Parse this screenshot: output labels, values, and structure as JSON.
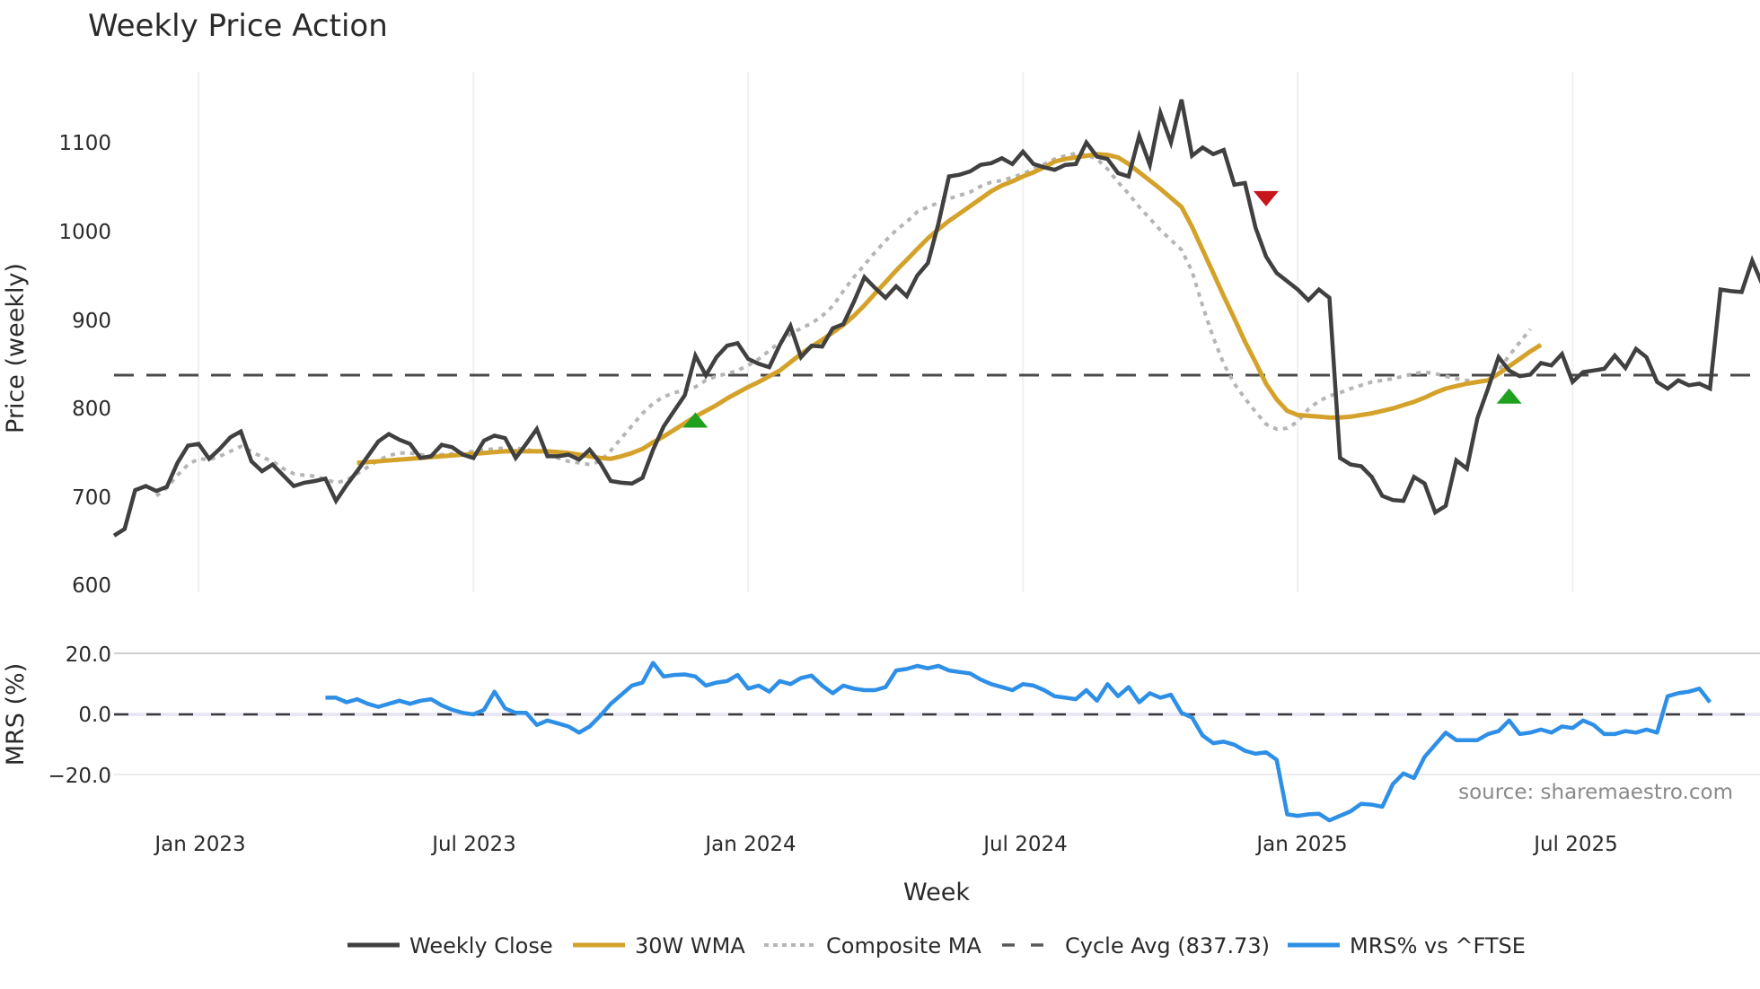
{
  "chart_data": [
    {
      "type": "line",
      "title": "Weekly Price Action",
      "xlabel": "Week",
      "ylabel": "Price (weekly)",
      "ylim": [
        600,
        1175
      ],
      "yticks": [
        600,
        700,
        800,
        900,
        1000,
        1100
      ],
      "x_tick_labels": [
        "Jan 2023",
        "Jul 2023",
        "Jan 2024",
        "Jul 2024",
        "Jan 2025",
        "Jul 2025"
      ],
      "x_tick_week_index": [
        8,
        34,
        60,
        86,
        112,
        138
      ],
      "grid": true,
      "legend_position": "bottom",
      "x_start": "Nov 2022 (weekly)",
      "series": [
        {
          "name": "Weekly Close",
          "color": "#404040",
          "start_index": 0,
          "values": [
            622,
            630,
            677,
            682,
            676,
            681,
            710,
            731,
            733,
            715,
            727,
            741,
            748,
            712,
            700,
            708,
            695,
            682,
            686,
            688,
            691,
            664,
            683,
            700,
            718,
            736,
            745,
            738,
            733,
            716,
            718,
            732,
            729,
            720,
            716,
            737,
            743,
            740,
            716,
            733,
            751,
            718,
            718,
            720,
            714,
            726,
            710,
            688,
            686,
            685,
            692,
            726,
            754,
            773,
            792,
            840,
            816,
            838,
            852,
            855,
            836,
            830,
            826,
            853,
            876,
            838,
            852,
            851,
            873,
            878,
            905,
            935,
            922,
            910,
            924,
            912,
            937,
            952,
            1000,
            1057,
            1059,
            1063,
            1071,
            1073,
            1079,
            1072,
            1087,
            1072,
            1068,
            1065,
            1071,
            1072,
            1098,
            1081,
            1078,
            1061,
            1057,
            1106,
            1071,
            1134,
            1098,
            1150,
            1082,
            1092,
            1084,
            1089,
            1047,
            1049,
            995,
            960,
            940,
            930,
            920,
            907,
            920,
            910,
            716,
            708,
            706,
            693,
            670,
            665,
            664,
            693,
            685,
            650,
            658,
            713,
            703,
            764,
            800,
            838,
            822,
            815,
            817,
            831,
            828,
            842,
            808,
            820,
            822,
            824,
            840,
            825,
            848,
            838,
            808,
            800,
            810,
            804,
            806,
            800,
            920,
            918,
            917,
            955,
            925
          ]
        },
        {
          "name": "30W WMA",
          "color": "#D4A22A",
          "start_index": 23,
          "values": [
            710,
            711,
            712,
            713,
            714,
            715,
            716,
            717,
            718,
            719,
            720,
            721,
            722,
            723,
            724,
            724,
            724,
            724,
            724,
            723,
            722,
            720,
            718,
            716,
            715,
            718,
            722,
            727,
            735,
            742,
            750,
            758,
            766,
            773,
            780,
            788,
            795,
            802,
            808,
            815,
            822,
            832,
            842,
            851,
            859,
            868,
            877,
            888,
            901,
            915,
            929,
            943,
            956,
            969,
            982,
            993,
            1003,
            1012,
            1021,
            1030,
            1039,
            1046,
            1051,
            1057,
            1062,
            1068,
            1075,
            1078,
            1080,
            1082,
            1084,
            1083,
            1080,
            1072,
            1062,
            1052,
            1042,
            1031,
            1020,
            996,
            968,
            940,
            912,
            885,
            857,
            832,
            806,
            787,
            773,
            768,
            767,
            766,
            765,
            765,
            766,
            768,
            770,
            773,
            776,
            780,
            784,
            789,
            795,
            800,
            803,
            806,
            808,
            810,
            818,
            827,
            836,
            845,
            853
          ]
        },
        {
          "name": "Composite MA",
          "color": "#B5B5B5",
          "start_index": 4,
          "values": [
            670,
            680,
            695,
            708,
            715,
            714,
            718,
            724,
            730,
            724,
            717,
            712,
            703,
            697,
            695,
            694,
            690,
            686,
            689,
            697,
            705,
            713,
            719,
            722,
            722,
            720,
            718,
            720,
            721,
            722,
            724,
            726,
            727,
            728,
            728,
            726,
            724,
            722,
            716,
            712,
            710,
            708,
            712,
            725,
            740,
            755,
            770,
            782,
            790,
            795,
            798,
            802,
            810,
            815,
            818,
            822,
            828,
            836,
            846,
            856,
            866,
            873,
            879,
            888,
            900,
            918,
            935,
            950,
            965,
            979,
            992,
            1002,
            1014,
            1020,
            1025,
            1030,
            1034,
            1038,
            1045,
            1050,
            1052,
            1056,
            1060,
            1066,
            1072,
            1078,
            1082,
            1085,
            1083,
            1078,
            1066,
            1050,
            1036,
            1020,
            1006,
            992,
            980,
            968,
            942,
            900,
            862,
            830,
            806,
            788,
            772,
            757,
            751,
            752,
            760,
            775,
            785,
            791,
            795,
            800,
            804,
            808,
            810,
            812,
            815,
            818,
            820,
            818,
            815,
            812,
            810,
            808,
            810,
            822,
            840,
            856,
            872
          ]
        },
        {
          "name": "Cycle Avg (837.73)",
          "color": "#4a4a4a",
          "constant": 837.73
        }
      ],
      "signals": [
        {
          "type": "buy",
          "week_index": 55,
          "value": 762,
          "color": "#1FA01F"
        },
        {
          "type": "sell",
          "week_index": 109,
          "value": 1030,
          "color": "#C8161D"
        },
        {
          "type": "buy",
          "week_index": 132,
          "value": 791,
          "color": "#1FA01F"
        }
      ]
    },
    {
      "type": "line",
      "title": "",
      "xlabel": "Week",
      "ylabel": "MRS (%)",
      "ylim": [
        -33,
        23
      ],
      "yticks": [
        -20.0,
        0.0,
        20.0
      ],
      "ytick_labels": [
        "−20.0",
        "0.0",
        "20.0"
      ],
      "zero_line": "dashed",
      "series": [
        {
          "name": "MRS% vs ^FTSE",
          "color": "#2E8FE6",
          "start_index": 20,
          "values": [
            5.5,
            5.5,
            4,
            5,
            3.5,
            2.5,
            3.5,
            4.5,
            3.5,
            4.5,
            5,
            3,
            1.5,
            0.5,
            0,
            1.5,
            7.5,
            2,
            0.5,
            0.5,
            -3.5,
            -2,
            -3,
            -4,
            -6,
            -4,
            -0.5,
            3.5,
            6.5,
            9.5,
            10.5,
            17,
            12.5,
            13,
            13.2,
            12.5,
            9.5,
            10.5,
            11,
            13,
            8.5,
            9.5,
            7.5,
            11,
            10,
            12,
            12.8,
            9.5,
            7,
            9.5,
            8.5,
            8,
            8,
            9,
            14.5,
            15,
            16,
            15.2,
            16,
            14.5,
            14,
            13.5,
            11.5,
            10,
            9,
            8,
            10,
            9.5,
            8,
            6,
            5.5,
            5,
            8,
            4.5,
            10,
            6,
            9,
            4,
            7,
            5.5,
            6.5,
            0.5,
            -1,
            -7,
            -9.5,
            -9,
            -10,
            -12,
            -13,
            -12.5,
            -15,
            -33,
            -33.5,
            -33,
            -32.8,
            -35,
            -33.5,
            -32,
            -29.5,
            -29.8,
            -30.5,
            -23,
            -19.5,
            -21,
            -14,
            -10,
            -6,
            -8.5,
            -8.5,
            -8.5,
            -6.5,
            -5.5,
            -2,
            -6.5,
            -6,
            -5,
            -6,
            -4,
            -4.5,
            -2,
            -3.5,
            -6.5,
            -6.5,
            -5.5,
            -6,
            -5,
            -6,
            6,
            7,
            7.5,
            8.5,
            4
          ]
        }
      ]
    }
  ],
  "header": {
    "title": "Weekly Price Action"
  },
  "axes": {
    "price_ylabel": "Price (weekly)",
    "price_yticks": [
      "600",
      "700",
      "800",
      "900",
      "1000",
      "1100"
    ],
    "mrs_ylabel": "MRS (%)",
    "mrs_yticks": [
      "20.0",
      "0.0",
      "−20.0"
    ],
    "xticks": [
      "Jan 2023",
      "Jul 2023",
      "Jan 2024",
      "Jul 2024",
      "Jan 2025",
      "Jul 2025"
    ],
    "xlabel": "Week"
  },
  "annotation": {
    "source": "source: sharemaestro.com"
  },
  "legend": {
    "items": [
      {
        "label": "Weekly Close",
        "color": "#404040",
        "style": "solid"
      },
      {
        "label": "30W WMA",
        "color": "#D4A22A",
        "style": "solid"
      },
      {
        "label": "Composite MA",
        "color": "#B5B5B5",
        "style": "dotted"
      },
      {
        "label": "Cycle Avg (837.73)",
        "color": "#4a4a4a",
        "style": "dashed"
      },
      {
        "label": "MRS% vs ^FTSE",
        "color": "#2E8FE6",
        "style": "solid"
      }
    ]
  }
}
